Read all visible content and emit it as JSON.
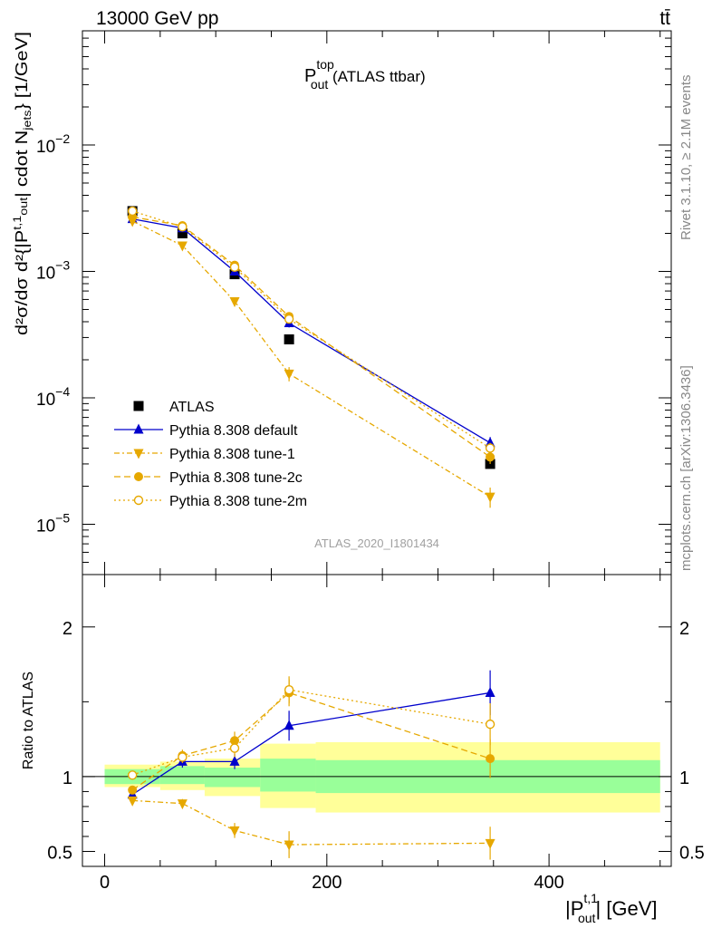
{
  "header": {
    "energy_label": "13000 GeV pp",
    "process_label": "tt̄",
    "side_text_top": "Rivet 3.1.10, ≥ 2.1M events",
    "side_text_bottom": "mcplots.cern.ch [arXiv:1306.3436]"
  },
  "colors": {
    "atlas": "#000000",
    "default": "#0000cc",
    "tunes": "#e6a800",
    "band_inner": "#99ff99",
    "band_outer": "#ffff99"
  },
  "chart_data": [
    {
      "type": "scatter",
      "panel": "main",
      "title_main": "P",
      "title_sup": "top",
      "title_sub": "out",
      "title_rest": " (ATLAS ttbar)",
      "watermark": "ATLAS_2020_I1801434",
      "ylabel": "d²σ/dσ d²{|P_out^t,1| cdot N_jets} [1/GeV]",
      "yscale": "log",
      "ylim": [
        4e-06,
        0.08
      ],
      "xlim": [
        -20,
        510
      ],
      "yticks": [
        {
          "value": 0.01,
          "base": "10",
          "exp": "−2"
        },
        {
          "value": 0.001,
          "base": "10",
          "exp": "−3"
        },
        {
          "value": 0.0001,
          "base": "10",
          "exp": "−4"
        },
        {
          "value": 1e-05,
          "base": "10",
          "exp": "−5"
        }
      ],
      "legend_position": "lower-left",
      "series": [
        {
          "name": "ATLAS",
          "style": "atlas",
          "x": [
            25,
            70,
            117,
            166,
            347
          ],
          "y": [
            0.003,
            0.002,
            0.00095,
            0.00029,
            3e-05
          ],
          "yerr": [
            0,
            0,
            0,
            0,
            0
          ]
        },
        {
          "name": "Pythia 8.308 default",
          "style": "default",
          "x": [
            25,
            70,
            117,
            166,
            347
          ],
          "y": [
            0.0026,
            0.0022,
            0.001,
            0.00039,
            4.4e-05
          ],
          "yerr": [
            0,
            0,
            0,
            3e-05,
            5e-06
          ]
        },
        {
          "name": "Pythia 8.308 tune-1",
          "style": "tune1",
          "x": [
            25,
            70,
            117,
            166,
            347
          ],
          "y": [
            0.0025,
            0.0016,
            0.00058,
            0.000155,
            1.65e-05
          ],
          "yerr": [
            0,
            0,
            4e-05,
            2e-05,
            3e-06
          ]
        },
        {
          "name": "Pythia 8.308 tune-2c",
          "style": "tune2c",
          "x": [
            25,
            70,
            117,
            166,
            347
          ],
          "y": [
            0.0027,
            0.0023,
            0.00112,
            0.00044,
            3.4e-05
          ],
          "yerr": [
            0,
            0,
            0,
            3e-05,
            4e-06
          ]
        },
        {
          "name": "Pythia 8.308 tune-2m",
          "style": "tune2m",
          "x": [
            25,
            70,
            117,
            166,
            347
          ],
          "y": [
            0.003,
            0.00225,
            0.00108,
            0.00042,
            4e-05
          ],
          "yerr": [
            0,
            0,
            0,
            3e-05,
            4e-06
          ]
        }
      ]
    },
    {
      "type": "scatter",
      "panel": "ratio",
      "ylabel": "Ratio to ATLAS",
      "xlabel_main": "|P",
      "xlabel_sup": "t,1",
      "xlabel_sub": "out",
      "xlabel_rest": "| [GeV]",
      "ylim": [
        0.4,
        2.35
      ],
      "xlim": [
        -20,
        510
      ],
      "yticks": [
        0.5,
        1,
        2
      ],
      "xticks": [
        0,
        200,
        400
      ],
      "bands": [
        {
          "x0": 0,
          "x1": 50,
          "inner": [
            0.95,
            1.05
          ],
          "outer": [
            0.93,
            1.08
          ]
        },
        {
          "x0": 50,
          "x1": 90,
          "inner": [
            0.95,
            1.07
          ],
          "outer": [
            0.91,
            1.1
          ]
        },
        {
          "x0": 90,
          "x1": 140,
          "inner": [
            0.93,
            1.06
          ],
          "outer": [
            0.87,
            1.12
          ]
        },
        {
          "x0": 140,
          "x1": 190,
          "inner": [
            0.9,
            1.12
          ],
          "outer": [
            0.79,
            1.22
          ]
        },
        {
          "x0": 190,
          "x1": 500,
          "inner": [
            0.89,
            1.11
          ],
          "outer": [
            0.76,
            1.23
          ]
        }
      ],
      "series": [
        {
          "name": "Pythia 8.308 default",
          "style": "default",
          "x": [
            25,
            70,
            117,
            166,
            347
          ],
          "y": [
            0.88,
            1.1,
            1.1,
            1.34,
            1.56
          ],
          "yerr": [
            0.02,
            0.04,
            0.05,
            0.1,
            0.15
          ]
        },
        {
          "name": "Pythia 8.308 tune-1",
          "style": "tune1",
          "x": [
            25,
            70,
            117,
            166,
            347
          ],
          "y": [
            0.84,
            0.82,
            0.64,
            0.545,
            0.555
          ],
          "yerr": [
            0.02,
            0.03,
            0.05,
            0.09,
            0.11
          ]
        },
        {
          "name": "Pythia 8.308 tune-2c",
          "style": "tune2c",
          "x": [
            25,
            70,
            117,
            166,
            347
          ],
          "y": [
            0.91,
            1.14,
            1.24,
            1.56,
            1.12
          ],
          "yerr": [
            0.02,
            0.04,
            0.06,
            0.09,
            0.13
          ]
        },
        {
          "name": "Pythia 8.308 tune-2m",
          "style": "tune2m",
          "x": [
            25,
            70,
            117,
            166,
            347
          ],
          "y": [
            1.01,
            1.13,
            1.19,
            1.58,
            1.35
          ],
          "yerr": [
            0.02,
            0.04,
            0.06,
            0.09,
            0.14
          ]
        }
      ]
    }
  ]
}
